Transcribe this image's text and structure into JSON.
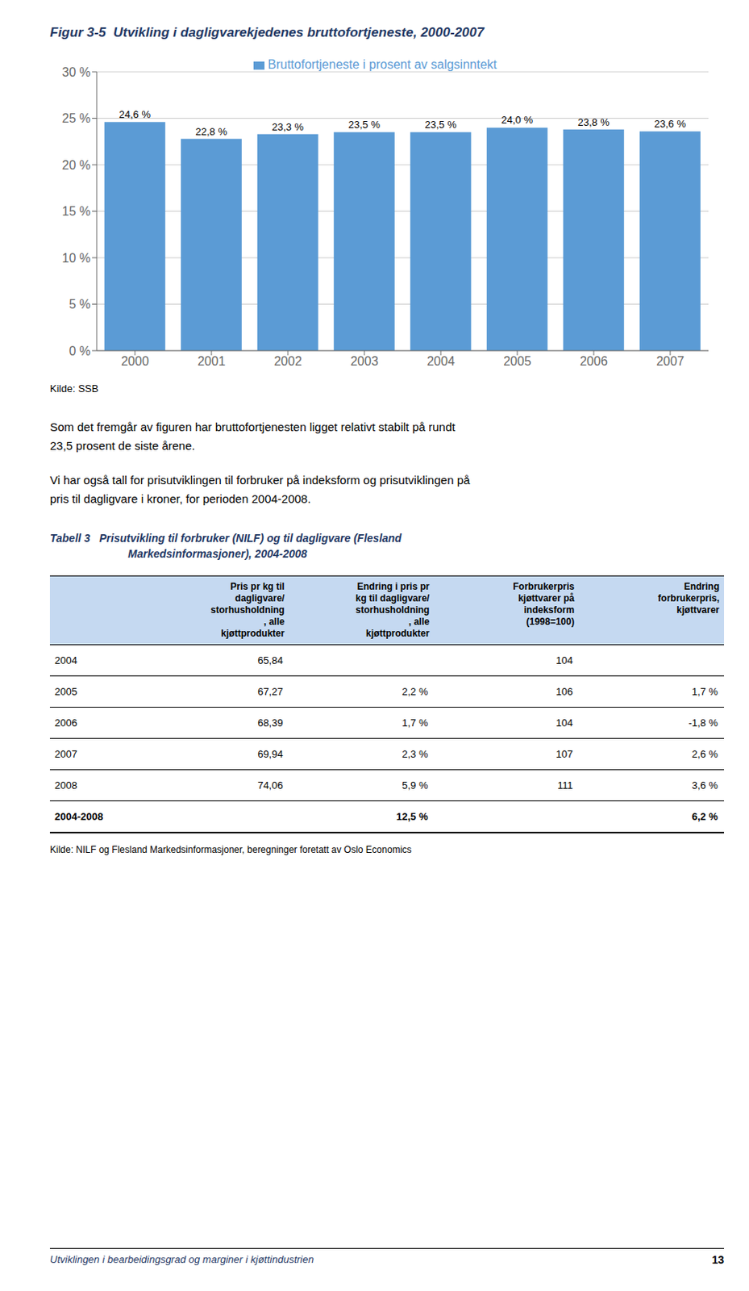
{
  "chart_data": {
    "type": "bar",
    "title": "Figur 3-5  Utvikling i dagligvarekjedenes bruttofortjeneste, 2000-2007",
    "categories": [
      "2000",
      "2001",
      "2002",
      "2003",
      "2004",
      "2005",
      "2006",
      "2007"
    ],
    "series": [
      {
        "name": "Bruttofortjeneste i prosent av salgsinntekt",
        "color": "#5B9BD5",
        "values": [
          24.6,
          22.8,
          23.3,
          23.5,
          23.5,
          24.0,
          23.8,
          23.6
        ],
        "value_labels": [
          "24,6 %",
          "22,8 %",
          "23,3 %",
          "23,5 %",
          "23,5 %",
          "24,0 %",
          "23,8 %",
          "23,6 %"
        ]
      }
    ],
    "data_labels": true,
    "ylim": [
      0,
      30
    ],
    "yticks": [
      {
        "value": 0,
        "label": "0 %"
      },
      {
        "value": 5,
        "label": "5 %"
      },
      {
        "value": 10,
        "label": "10 %"
      },
      {
        "value": 15,
        "label": "15 %"
      },
      {
        "value": 20,
        "label": "20 %"
      },
      {
        "value": 25,
        "label": "25 %"
      },
      {
        "value": 30,
        "label": "30 %"
      }
    ],
    "grid": true,
    "legend": "top",
    "annotations": [
      "Kilde: SSB",
      "Som det fremgår av figuren har bruttofortjenesten ligget relativt stabilt på rundt\n23,5 prosent de siste årene.",
      "Vi har også tall for prisutviklingen til forbruker på indeksform og prisutviklingen på\npris til dagligvare i kroner, for perioden 2004-2008.",
      "Tabell 3   Prisutvikling til forbruker (NILF) og til dagligvare (Flesland",
      "Markedsinformasjoner), 2004-2008",
      "Kilde: NILF og Flesland Markedsinformasjoner, beregninger foretatt av Oslo Economics",
      "Utviklingen i bearbeidingsgrad og marginer i kjøttindustrien",
      "13"
    ],
    "table": {
      "columns": [
        null,
        "Pris pr kg til\ndagligvare/\nstorhusholdning\n, alle\nkjøttprodukter",
        "Endring i pris pr\nkg til dagligvare/\nstorhusholdning\n, alle\nkjøttprodukter",
        "Forbrukerpris\nkjøttvarer på\nindeksform\n(1998=100)",
        "Endring\nforbrukerpris,\nkjøttvarer"
      ],
      "rows": [
        [
          "2004",
          "65,84",
          null,
          "104",
          null
        ],
        [
          "2005",
          "67,27",
          "2,2 %",
          "106",
          "1,7 %"
        ],
        [
          "2006",
          "68,39",
          "1,7 %",
          "104",
          "-1,8 %"
        ],
        [
          "2007",
          "69,94",
          "2,3 %",
          "107",
          "2,6 %"
        ],
        [
          "2008",
          "74,06",
          "5,9 %",
          "111",
          "3,6 %"
        ],
        [
          "2004-2008",
          null,
          "12,5 %",
          null,
          "6,2 %"
        ]
      ]
    }
  }
}
